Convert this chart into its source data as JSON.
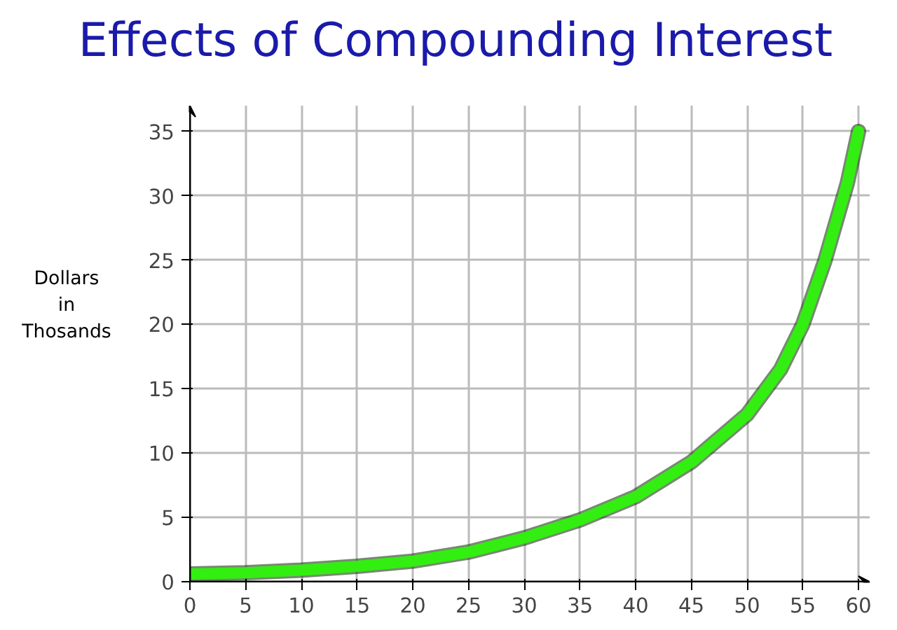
{
  "chart_data": {
    "type": "line",
    "title": "Effects of Compounding Interest",
    "ylabel": "Dollars in Thosands",
    "x": [
      0,
      5,
      10,
      15,
      20,
      25,
      30,
      35,
      40,
      45,
      50,
      53,
      55,
      57,
      58,
      59,
      60
    ],
    "series": [
      {
        "color": "#33ee11",
        "values": [
          0.6,
          0.7,
          0.9,
          1.2,
          1.6,
          2.3,
          3.4,
          4.8,
          6.6,
          9.3,
          13,
          16.5,
          20,
          25,
          28,
          31,
          35
        ]
      }
    ],
    "xlim": [
      0,
      61
    ],
    "ylim": [
      0,
      37
    ],
    "xticks": [
      0,
      5,
      10,
      15,
      20,
      25,
      30,
      35,
      40,
      45,
      50,
      55,
      60
    ],
    "yticks": [
      0,
      5,
      10,
      15,
      20,
      25,
      30,
      35
    ],
    "grid": true,
    "marker": "none",
    "line_style": "solid"
  }
}
